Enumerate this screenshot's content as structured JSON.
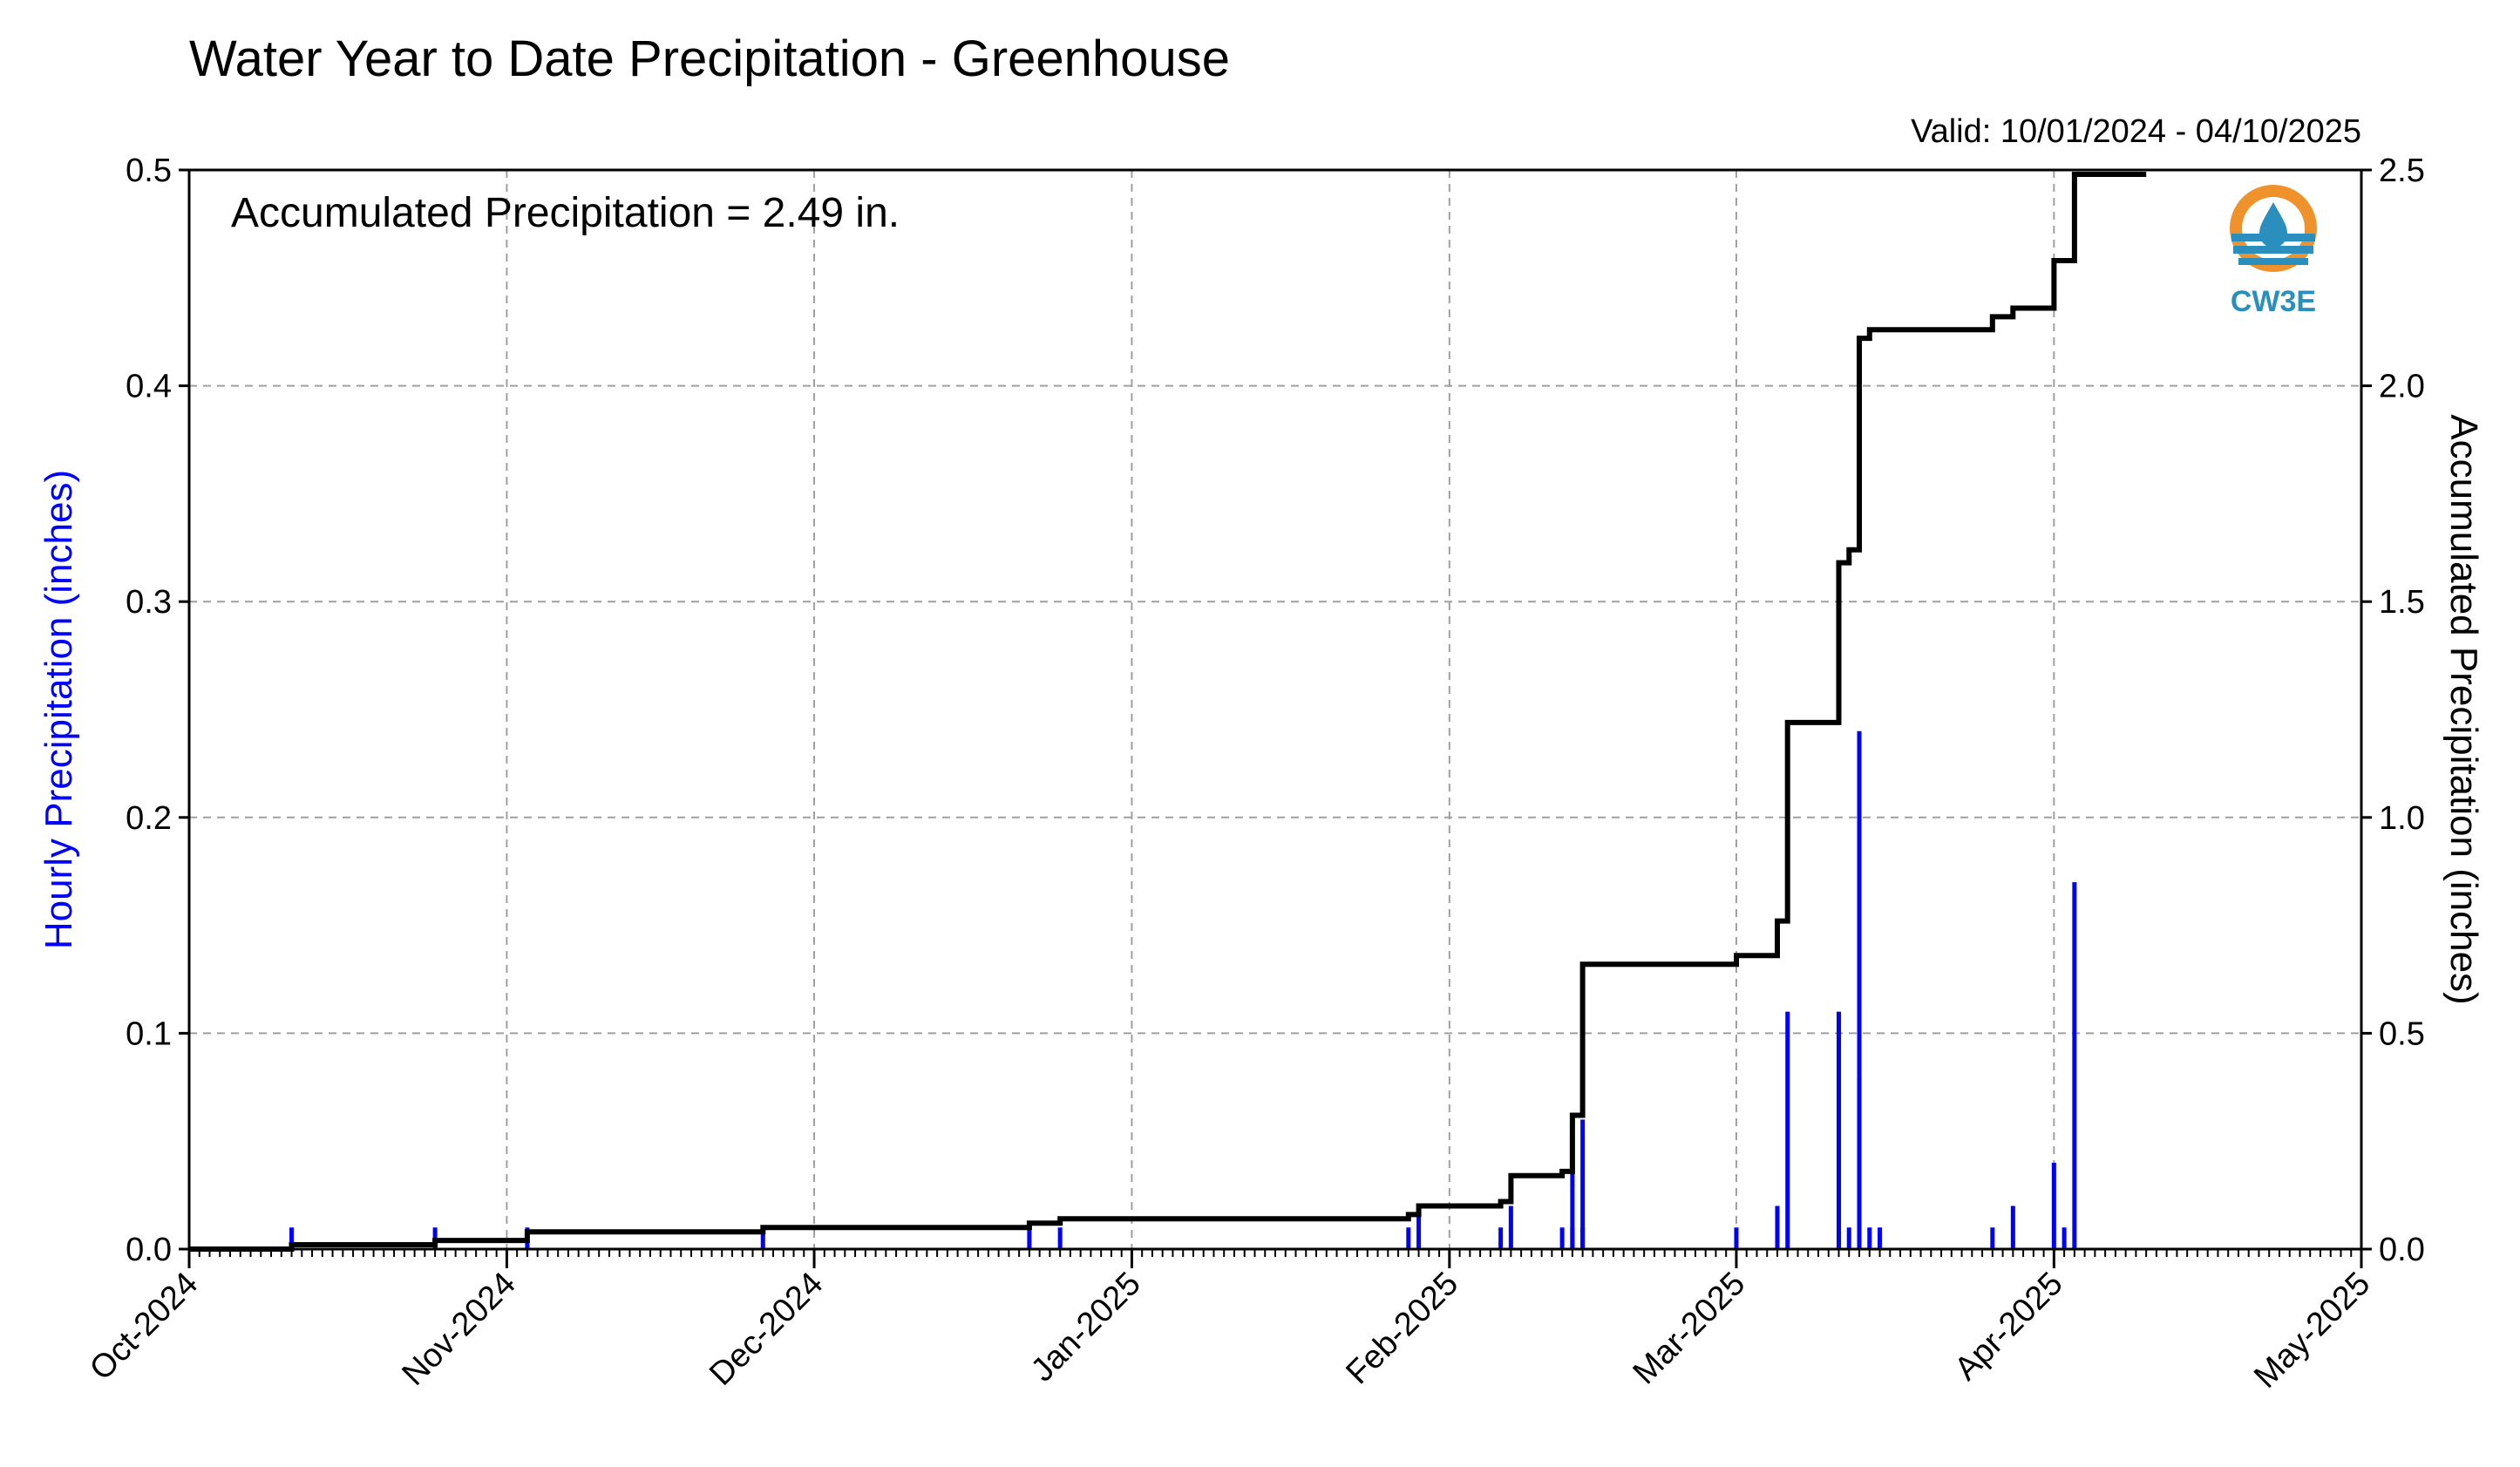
{
  "title": "Water Year to Date Precipitation - Greenhouse",
  "valid_text": "Valid: 10/01/2024 - 04/10/2025",
  "annotation": "Accumulated Precipitation = 2.49 in.",
  "logo": {
    "text": "CW3E",
    "icon": "water-drop-logo-icon",
    "colors": {
      "ring": "#f0922b",
      "waves": "#2a8fbd"
    }
  },
  "colors": {
    "hourly": "#0000ff",
    "accumulated": "#000000",
    "left_label": "#0000ff"
  },
  "chart_data": {
    "type": "bar+line",
    "title": "Water Year to Date Precipitation - Greenhouse",
    "xlabel": "",
    "y_left_label": "Hourly Precipitation (inches)",
    "y_right_label": "Accumulated Precipitation (inches)",
    "y_left_lim": [
      0,
      0.5
    ],
    "y_right_lim": [
      0,
      2.5
    ],
    "y_left_ticks": [
      "0.0",
      "0.1",
      "0.2",
      "0.3",
      "0.4",
      "0.5"
    ],
    "y_right_ticks": [
      "0.0",
      "0.5",
      "1.0",
      "1.5",
      "2.0",
      "2.5"
    ],
    "x_range": [
      "2024-10-01",
      "2025-05-01"
    ],
    "x_ticks": [
      "Oct-2024",
      "Nov-2024",
      "Dec-2024",
      "Jan-2025",
      "Feb-2025",
      "Mar-2025",
      "Apr-2025",
      "May-2025"
    ],
    "grid": true,
    "series": [
      {
        "name": "Hourly Precipitation",
        "type": "bar",
        "points": [
          [
            "2024-10-11",
            0.01
          ],
          [
            "2024-10-25",
            0.01
          ],
          [
            "2024-11-03",
            0.01
          ],
          [
            "2024-11-26",
            0.01
          ],
          [
            "2024-12-22",
            0.01
          ],
          [
            "2024-12-25",
            0.01
          ],
          [
            "2025-01-28",
            0.01
          ],
          [
            "2025-01-29",
            0.015
          ],
          [
            "2025-02-06",
            0.01
          ],
          [
            "2025-02-07",
            0.02
          ],
          [
            "2025-02-12",
            0.01
          ],
          [
            "2025-02-13",
            0.01
          ],
          [
            "2025-02-13",
            0.04
          ],
          [
            "2025-02-14",
            0.01
          ],
          [
            "2025-02-14",
            0.06
          ],
          [
            "2025-03-01",
            0.01
          ],
          [
            "2025-03-05",
            0.02
          ],
          [
            "2025-03-06",
            0.11
          ],
          [
            "2025-03-11",
            0.11
          ],
          [
            "2025-03-11",
            0.01
          ],
          [
            "2025-03-12",
            0.01
          ],
          [
            "2025-03-13",
            0.24
          ],
          [
            "2025-03-13",
            0.08
          ],
          [
            "2025-03-14",
            0.01
          ],
          [
            "2025-03-15",
            0.01
          ],
          [
            "2025-03-26",
            0.01
          ],
          [
            "2025-03-28",
            0.02
          ],
          [
            "2025-04-01",
            0.04
          ],
          [
            "2025-04-02",
            0.01
          ],
          [
            "2025-04-03",
            0.17
          ]
        ]
      },
      {
        "name": "Accumulated Precipitation",
        "type": "step",
        "points": [
          [
            "2024-10-01",
            0.0
          ],
          [
            "2024-10-11",
            0.01
          ],
          [
            "2024-10-25",
            0.02
          ],
          [
            "2024-11-03",
            0.04
          ],
          [
            "2024-11-26",
            0.05
          ],
          [
            "2024-12-22",
            0.06
          ],
          [
            "2024-12-25",
            0.07
          ],
          [
            "2025-01-28",
            0.08
          ],
          [
            "2025-01-29",
            0.1
          ],
          [
            "2025-02-06",
            0.11
          ],
          [
            "2025-02-07",
            0.17
          ],
          [
            "2025-02-12",
            0.18
          ],
          [
            "2025-02-13",
            0.24
          ],
          [
            "2025-02-13",
            0.31
          ],
          [
            "2025-02-14",
            0.33
          ],
          [
            "2025-02-14",
            0.66
          ],
          [
            "2025-03-01",
            0.68
          ],
          [
            "2025-03-05",
            0.76
          ],
          [
            "2025-03-06",
            1.22
          ],
          [
            "2025-03-11",
            1.59
          ],
          [
            "2025-03-12",
            1.62
          ],
          [
            "2025-03-13",
            2.11
          ],
          [
            "2025-03-14",
            2.13
          ],
          [
            "2025-03-26",
            2.16
          ],
          [
            "2025-03-28",
            2.18
          ],
          [
            "2025-04-01",
            2.29
          ],
          [
            "2025-04-03",
            2.49
          ],
          [
            "2025-04-10",
            2.49
          ]
        ]
      }
    ]
  }
}
